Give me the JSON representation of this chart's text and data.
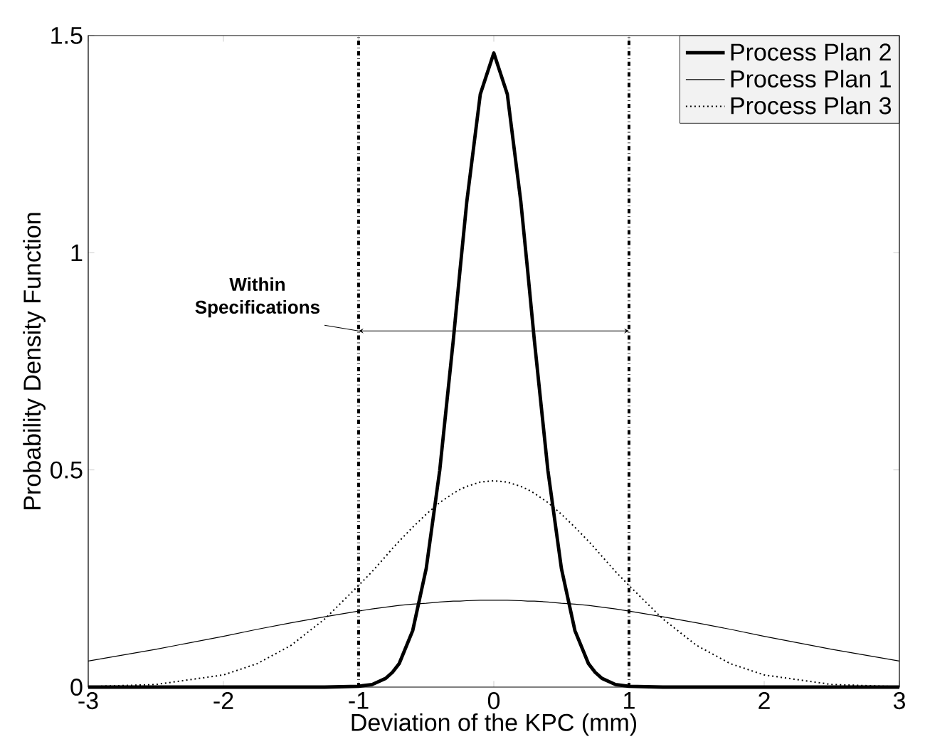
{
  "chart_data": {
    "type": "line",
    "xlabel": "Deviation of the  KPC (mm)",
    "ylabel": "Probability Density Function",
    "x": [
      -3,
      -2.5,
      -2,
      -1.75,
      -1.5,
      -1.25,
      -1,
      -0.9,
      -0.8,
      -0.75,
      -0.7,
      -0.6,
      -0.5,
      -0.4,
      -0.3,
      -0.25,
      -0.2,
      -0.1,
      0,
      0.1,
      0.2,
      0.25,
      0.3,
      0.4,
      0.5,
      0.6,
      0.7,
      0.75,
      0.8,
      0.9,
      1,
      1.25,
      1.5,
      1.75,
      2,
      2.5,
      3
    ],
    "series": [
      {
        "name": "Process Plan 2",
        "color": "#000000",
        "line_style": "solid",
        "values": [
          0,
          0,
          0,
          0,
          0,
          0,
          0.002,
          0.006,
          0.02,
          0.034,
          0.054,
          0.13,
          0.273,
          0.499,
          0.798,
          0.96,
          1.117,
          1.365,
          1.46,
          1.365,
          1.117,
          0.96,
          0.798,
          0.499,
          0.273,
          0.13,
          0.054,
          0.034,
          0.02,
          0.006,
          0.002,
          0,
          0,
          0,
          0,
          0,
          0
        ]
      },
      {
        "name": "Process Plan 1",
        "color": "#000000",
        "line_style": "solid",
        "values": [
          0.06,
          0.087,
          0.117,
          0.133,
          0.148,
          0.162,
          0.175,
          0.18,
          0.184,
          0.186,
          0.188,
          0.191,
          0.193,
          0.196,
          0.198,
          0.198,
          0.199,
          0.2,
          0.2,
          0.2,
          0.199,
          0.198,
          0.198,
          0.196,
          0.193,
          0.191,
          0.188,
          0.186,
          0.184,
          0.18,
          0.175,
          0.162,
          0.148,
          0.133,
          0.117,
          0.087,
          0.06
        ]
      },
      {
        "name": "Process Plan 3",
        "color": "#000000",
        "line_style": "dotted",
        "values": [
          0.001,
          0.006,
          0.028,
          0.054,
          0.096,
          0.157,
          0.234,
          0.266,
          0.301,
          0.319,
          0.336,
          0.368,
          0.398,
          0.425,
          0.446,
          0.455,
          0.462,
          0.472,
          0.475,
          0.472,
          0.462,
          0.455,
          0.446,
          0.425,
          0.398,
          0.368,
          0.336,
          0.319,
          0.301,
          0.266,
          0.234,
          0.157,
          0.096,
          0.054,
          0.028,
          0.006,
          0.001
        ]
      }
    ],
    "xlim": [
      -3,
      3
    ],
    "ylim": [
      0,
      1.5
    ],
    "xticks": [
      -3,
      -2,
      -1,
      0,
      1,
      2,
      3
    ],
    "yticks": [
      0,
      0.5,
      1,
      1.5
    ],
    "ref_lines": [
      {
        "axis": "x",
        "value": -1,
        "color": "#000000",
        "line_style": "dashdot"
      },
      {
        "axis": "x",
        "value": 1,
        "color": "#000000",
        "line_style": "dashdot"
      }
    ],
    "annotations": [
      {
        "text": "Within Specifications",
        "x": -1,
        "y": 0.82
      }
    ],
    "legend": "top right",
    "grid": false
  }
}
